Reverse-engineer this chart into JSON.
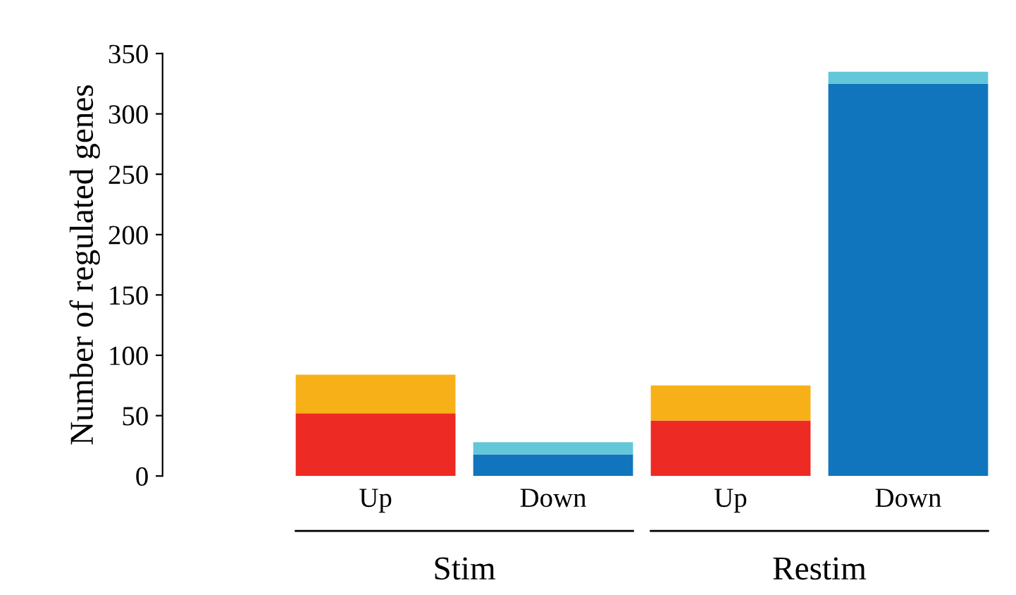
{
  "chart_data": {
    "type": "bar",
    "stacked": true,
    "ylabel": "Number of regulated genes",
    "categories": [
      "Up",
      "Down",
      "Up",
      "Down"
    ],
    "series": [
      {
        "values": [
          52,
          18,
          46,
          325
        ],
        "colors": [
          "#ee2a24",
          "#1075bd",
          "#ee2a24",
          "#1075bd"
        ]
      },
      {
        "values": [
          32,
          10,
          29,
          10
        ],
        "colors": [
          "#f8b019",
          "#63c6d9",
          "#f8b019",
          "#63c6d9"
        ]
      }
    ],
    "ylim": [
      0,
      350
    ],
    "yticks": [
      0,
      50,
      100,
      150,
      200,
      250,
      300,
      350
    ],
    "grid": false,
    "legend": false,
    "annotations": [
      "Stim",
      "Restim"
    ]
  }
}
